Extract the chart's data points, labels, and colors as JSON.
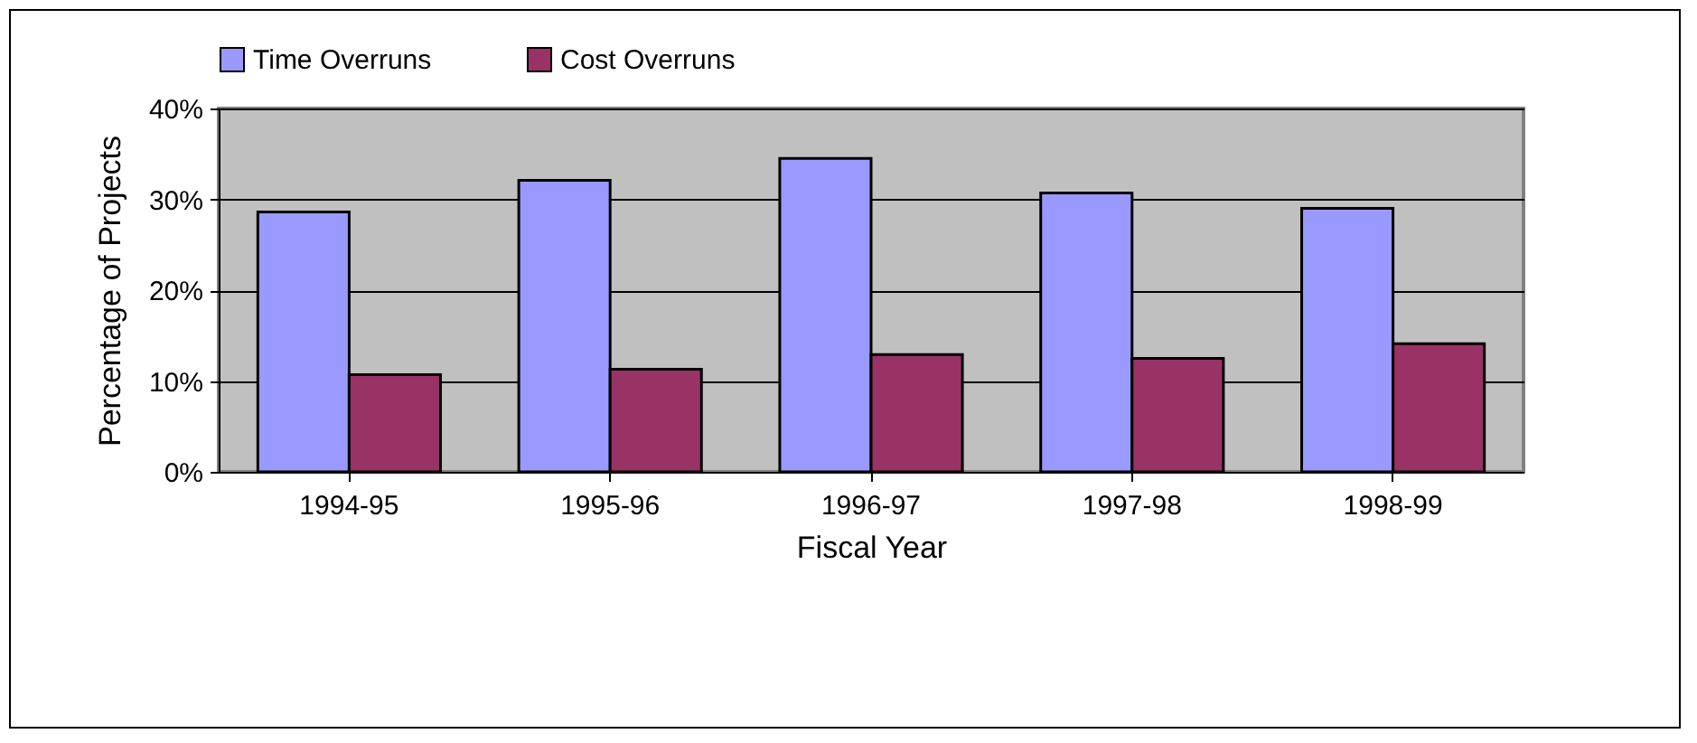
{
  "chart_data": {
    "type": "bar",
    "xlabel": "Fiscal Year",
    "ylabel": "Percentage of Projects",
    "categories": [
      "1994-95",
      "1995-96",
      "1996-97",
      "1997-98",
      "1998-99"
    ],
    "series": [
      {
        "name": "Time Overruns",
        "color": "#9999ff",
        "values": [
          28.6,
          32.1,
          34.5,
          30.7,
          29.0
        ]
      },
      {
        "name": "Cost Overruns",
        "color": "#993366",
        "values": [
          10.7,
          11.3,
          12.9,
          12.5,
          14.1
        ]
      }
    ],
    "ylim": [
      0,
      40
    ],
    "yticks": [
      {
        "value": 0,
        "label": "0%"
      },
      {
        "value": 10,
        "label": "10%"
      },
      {
        "value": 20,
        "label": "20%"
      },
      {
        "value": 30,
        "label": "30%"
      },
      {
        "value": 40,
        "label": "40%"
      }
    ],
    "grid": "y",
    "legend": "top"
  }
}
